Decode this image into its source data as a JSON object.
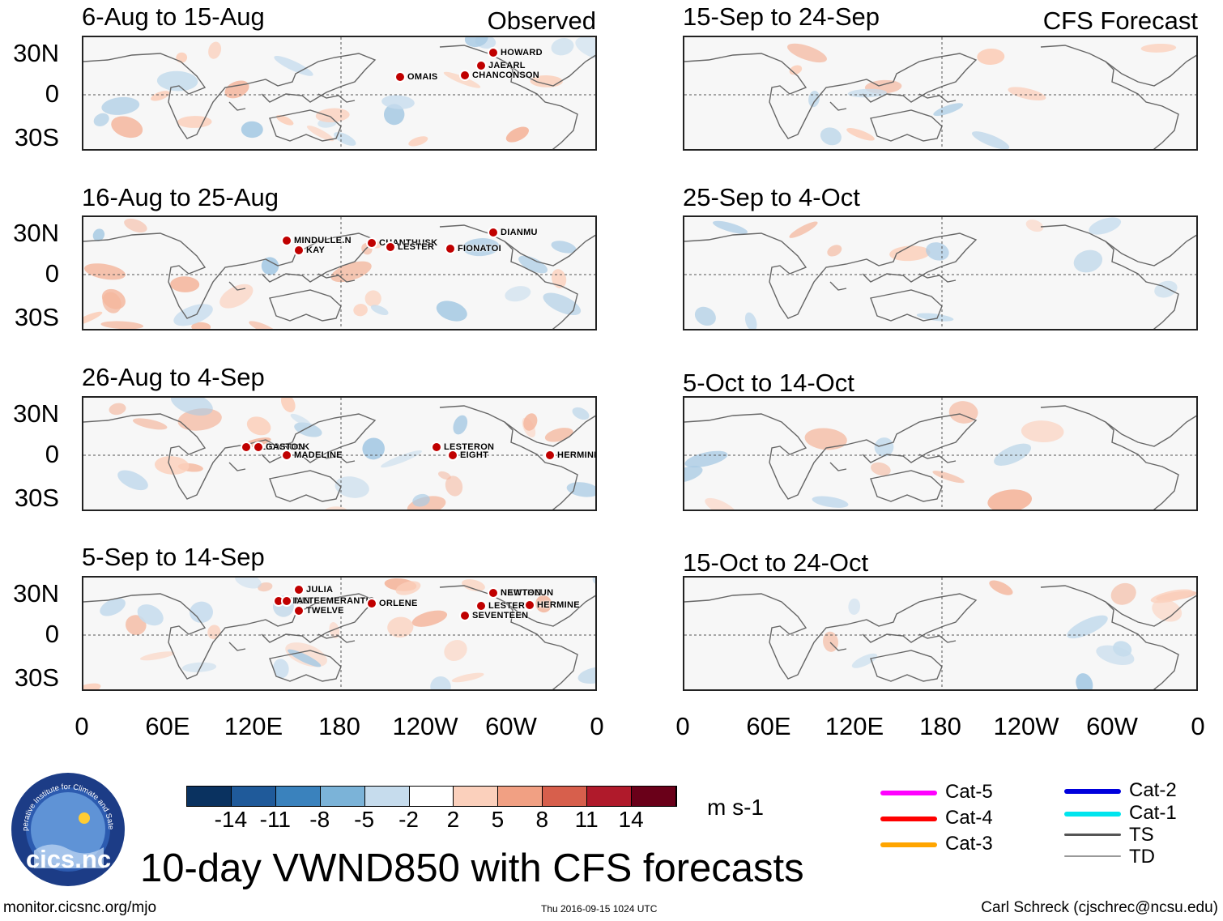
{
  "main_title": "10-day VWND850 with CFS forecasts",
  "headers": {
    "observed": "Observed",
    "forecast": "CFS Forecast"
  },
  "observed_panels": [
    {
      "period": "6-Aug to 15-Aug",
      "storms": [
        "OMAIS",
        "CHANCONSON",
        "HOWARD",
        "JAEARL"
      ]
    },
    {
      "period": "16-Aug to 25-Aug",
      "storms": [
        "CHANTHUSK",
        "DIANMU",
        "MINDULLE.N",
        "KAY",
        "LESTER",
        "FIONATOI"
      ]
    },
    {
      "period": "26-Aug to 4-Sep",
      "storms": [
        "NLIONROCK",
        "MADELINE",
        "LESTERON",
        "EIGHT",
        "HERMINE",
        "GASTON"
      ]
    },
    {
      "period": "5-Sep to 14-Sep",
      "storms": [
        "SEVENTEEN",
        "NAMTHEUN",
        "LESTER",
        "HERMINE",
        "JULIA",
        "NINETEEMERANTIS",
        "ORLENE",
        "NEWTON",
        "IAN",
        "TWELVE"
      ]
    }
  ],
  "forecast_panels": [
    {
      "period": "15-Sep to 24-Sep"
    },
    {
      "period": "25-Sep to 4-Oct"
    },
    {
      "period": "5-Oct to 14-Oct"
    },
    {
      "period": "15-Oct to 24-Oct"
    }
  ],
  "lat_labels": [
    "30N",
    "0",
    "30S"
  ],
  "lon_labels": [
    "0",
    "60E",
    "120E",
    "180",
    "120W",
    "60W",
    "0"
  ],
  "colorbar": {
    "units": "m s-1",
    "ticks": [
      "-14",
      "-11",
      "-8",
      "-5",
      "-2",
      "2",
      "5",
      "8",
      "11",
      "14"
    ],
    "colors": [
      "#0a3260",
      "#1f5a9a",
      "#3a82bd",
      "#7bb3d8",
      "#c6dced",
      "#ffffff",
      "#fbd0bc",
      "#f1a083",
      "#d75f4c",
      "#b01a2b",
      "#6a0019"
    ]
  },
  "legend": [
    {
      "label": "Cat-5",
      "color": "#ff00ff"
    },
    {
      "label": "Cat-4",
      "color": "#ff0000"
    },
    {
      "label": "Cat-3",
      "color": "#ffa500"
    },
    {
      "label": "Cat-2",
      "color": "#0000dd"
    },
    {
      "label": "Cat-1",
      "color": "#00e5ee"
    },
    {
      "label": "TS",
      "color": "#555555"
    },
    {
      "label": "TD",
      "color": "#999999"
    }
  ],
  "logo_text": "cics.nc",
  "logo_ring_text": "Cooperative Institute for Climate and Satellites",
  "footer": {
    "url": "monitor.cicsnc.org/mjo",
    "timestamp": "Thu 2016-09-15 1024 UTC",
    "author": "Carl Schreck (cjschrec@ncsu.edu)"
  }
}
